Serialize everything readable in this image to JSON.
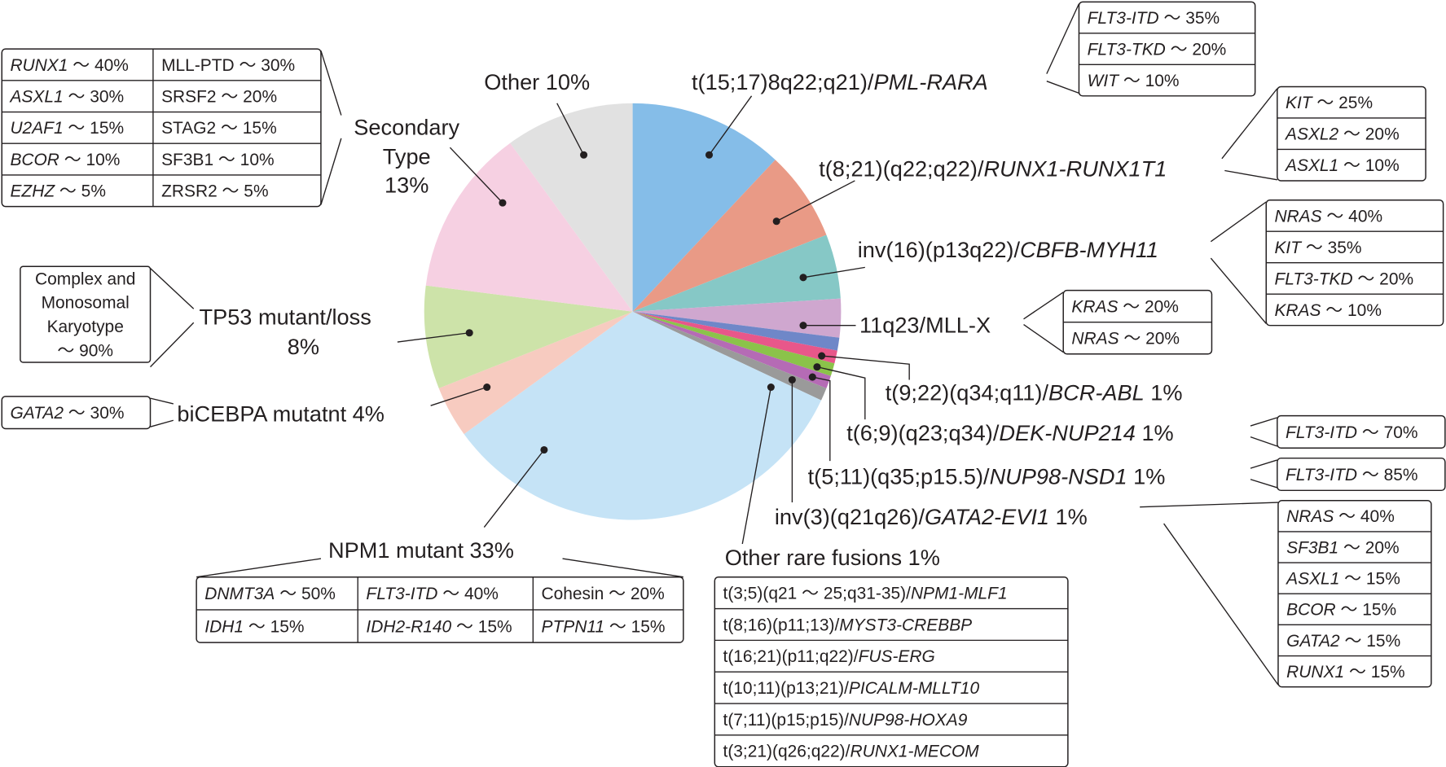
{
  "chart_data": {
    "type": "pie",
    "title": "",
    "start": "top",
    "direction": "clockwise",
    "slices": [
      {
        "name": "t(15;17)/PML-RARA",
        "value": 12,
        "color": "#85bde8"
      },
      {
        "name": "t(8;21)/RUNX1-RUNX1T1",
        "value": 7,
        "color": "#e99a86"
      },
      {
        "name": "inv(16)/CBFB-MYH11",
        "value": 5,
        "color": "#86c8c6"
      },
      {
        "name": "11q23/MLL-X",
        "value": 3,
        "color": "#cfa7cf"
      },
      {
        "name": "t(9;22)/BCR-ABL",
        "value": 1,
        "color": "#6f87c8"
      },
      {
        "name": "t(6;9)/DEK-NUP214",
        "value": 1,
        "color": "#e8578a"
      },
      {
        "name": "t(5;11)/NUP98-NSD1",
        "value": 1,
        "color": "#8bc34a"
      },
      {
        "name": "inv(3)/GATA2-EVI1",
        "value": 1,
        "color": "#b56bb5"
      },
      {
        "name": "Other rare fusions",
        "value": 1,
        "color": "#9a9a9a"
      },
      {
        "name": "NPM1 mutant",
        "value": 33,
        "color": "#c5e3f6"
      },
      {
        "name": "biCEBPA mutatnt",
        "value": 4,
        "color": "#f7cbc0"
      },
      {
        "name": "TP53 mutant/loss",
        "value": 8,
        "color": "#cde3a9"
      },
      {
        "name": "Secondary Type",
        "value": 13,
        "color": "#f6d0e2"
      },
      {
        "name": "Other",
        "value": 10,
        "color": "#e1e1e1"
      }
    ]
  },
  "labels": [
    {
      "pre": "Other   10%",
      "gene": "",
      "post": ""
    },
    {
      "pre": "t(15;17)8q22;q21)/",
      "gene": "PML-RARA",
      "post": ""
    },
    {
      "pre": "t(8;21)(q22;q22)/",
      "gene": "RUNX1-RUNX1T1",
      "post": ""
    },
    {
      "pre": "inv(16)(p13q22)/",
      "gene": "CBFB-MYH11",
      "post": ""
    },
    {
      "pre": "11q23/MLL-X",
      "gene": "",
      "post": ""
    },
    {
      "pre": "t(9;22)(q34;q11)/",
      "gene": "BCR-ABL",
      "post": "   1%"
    },
    {
      "pre": "t(6;9)(q23;q34)/",
      "gene": "DEK-NUP214",
      "post": "   1%"
    },
    {
      "pre": "t(5;11)(q35;p15.5)/",
      "gene": "NUP98-NSD1",
      "post": "   1%"
    },
    {
      "pre": "inv(3)(q21q26)/",
      "gene": "GATA2-EVI1",
      "post": "   1%"
    },
    {
      "pre": "Other rare fusions    1%",
      "gene": "",
      "post": ""
    },
    {
      "pre": "NPM1 mutant   33%",
      "gene": "",
      "post": ""
    },
    {
      "pre": "biCEBPA mutatnt  4%",
      "gene": "",
      "post": ""
    },
    {
      "pre": "TP53 mutant/loss",
      "gene": "",
      "post": ""
    },
    {
      "pre": "8%",
      "gene": "",
      "post": ""
    },
    {
      "pre": "Secondary",
      "gene": "",
      "post": ""
    },
    {
      "pre": "Type",
      "gene": "",
      "post": ""
    },
    {
      "pre": "13%",
      "gene": "",
      "post": ""
    }
  ],
  "tables": {
    "pml_rara": [
      [
        {
          "g": "FLT3-ITD",
          "v": " 〜 35%",
          "i": true
        }
      ],
      [
        {
          "g": "FLT3-TKD",
          "v": " 〜 20%",
          "i": true
        }
      ],
      [
        {
          "g": "WIT",
          "v": " 〜 10%",
          "i": true
        }
      ]
    ],
    "runx1": [
      [
        {
          "g": "KIT",
          "v": " 〜 25%",
          "i": true
        }
      ],
      [
        {
          "g": "ASXL2",
          "v": " 〜 20%",
          "i": true
        }
      ],
      [
        {
          "g": "ASXL1",
          "v": " 〜 10%",
          "i": true
        }
      ]
    ],
    "cbfb": [
      [
        {
          "g": "NRAS",
          "v": " 〜 40%",
          "i": true
        }
      ],
      [
        {
          "g": "KIT",
          "v": " 〜 35%",
          "i": true
        }
      ],
      [
        {
          "g": "FLT3-TKD",
          "v": " 〜 20%",
          "i": true
        }
      ],
      [
        {
          "g": "KRAS",
          "v": " 〜 10%",
          "i": true
        }
      ]
    ],
    "mll": [
      [
        {
          "g": "KRAS",
          "v": " 〜 20%",
          "i": true
        }
      ],
      [
        {
          "g": "NRAS",
          "v": " 〜 20%",
          "i": true
        }
      ]
    ],
    "dek": [
      [
        {
          "g": "FLT3-ITD",
          "v": " 〜 70%",
          "i": true
        }
      ]
    ],
    "nsd1": [
      [
        {
          "g": "FLT3-ITD",
          "v": " 〜 85%",
          "i": true
        }
      ]
    ],
    "gata2_evi1": [
      [
        {
          "g": "NRAS",
          "v": " 〜 40%",
          "i": true
        }
      ],
      [
        {
          "g": "SF3B1",
          "v": " 〜 20%",
          "i": true
        }
      ],
      [
        {
          "g": "ASXL1",
          "v": " 〜 15%",
          "i": true
        }
      ],
      [
        {
          "g": "BCOR",
          "v": " 〜 15%",
          "i": true
        }
      ],
      [
        {
          "g": "GATA2",
          "v": " 〜 15%",
          "i": true
        }
      ],
      [
        {
          "g": "RUNX1",
          "v": " 〜 15%",
          "i": true
        }
      ]
    ],
    "secondary": [
      [
        {
          "g": "RUNX1",
          "v": " 〜 40%",
          "i": true
        },
        {
          "g": "MLL-PTD",
          "v": " 〜 30%",
          "i": false
        }
      ],
      [
        {
          "g": "ASXL1",
          "v": " 〜 30%",
          "i": true
        },
        {
          "g": "SRSF2",
          "v": " 〜 20%",
          "i": false
        }
      ],
      [
        {
          "g": "U2AF1",
          "v": " 〜 15%",
          "i": true
        },
        {
          "g": "STAG2",
          "v": " 〜 15%",
          "i": false
        }
      ],
      [
        {
          "g": "BCOR",
          "v": " 〜 10%",
          "i": true
        },
        {
          "g": "SF3B1",
          "v": " 〜 10%",
          "i": false
        }
      ],
      [
        {
          "g": "EZHZ",
          "v": " 〜 5%",
          "i": true
        },
        {
          "g": "ZRSR2",
          "v": " 〜 5%",
          "i": false
        }
      ]
    ],
    "tp53": [
      [
        {
          "g": "Complex and",
          "v": "",
          "i": false
        }
      ],
      [
        {
          "g": "Monosomal",
          "v": "",
          "i": false
        }
      ],
      [
        {
          "g": "Karyotype",
          "v": "",
          "i": false
        }
      ],
      [
        {
          "g": "〜 90%",
          "v": "",
          "i": false
        }
      ]
    ],
    "bicebpa": [
      [
        {
          "g": "GATA2",
          "v": " 〜 30%",
          "i": true
        }
      ]
    ],
    "npm1": [
      [
        {
          "g": "DNMT3A",
          "v": " 〜 50%",
          "i": true
        },
        {
          "g": "FLT3-ITD",
          "v": " 〜 40%",
          "i": true
        },
        {
          "g": "Cohesin",
          "v": " 〜 20%",
          "i": false
        }
      ],
      [
        {
          "g": "IDH1",
          "v": " 〜 15%",
          "i": true
        },
        {
          "g": "IDH2-R140",
          "v": " 〜 15%",
          "i": true
        },
        {
          "g": "PTPN11",
          "v": " 〜 15%",
          "i": true
        }
      ]
    ],
    "rare": [
      [
        {
          "p": "t(3;5)(q21 〜 25;q31-35)/",
          "g": "NPM1-MLF1",
          "v": "",
          "i": true
        }
      ],
      [
        {
          "p": "t(8;16)(p11;13)/",
          "g": "MYST3-CREBBP",
          "v": "",
          "i": true
        }
      ],
      [
        {
          "p": "t(16;21)(p11;q22)/",
          "g": "FUS-ERG",
          "v": "",
          "i": true
        }
      ],
      [
        {
          "p": "t(10;11)(p13;21)/",
          "g": "PICALM-MLLT10",
          "v": "",
          "i": true
        }
      ],
      [
        {
          "p": "t(7;11)(p15;p15)/",
          "g": "NUP98-HOXA9",
          "v": "",
          "i": true
        }
      ],
      [
        {
          "p": "t(3;21)(q26;q22)/",
          "g": "RUNX1-MECOM",
          "v": "",
          "i": true
        }
      ]
    ]
  }
}
